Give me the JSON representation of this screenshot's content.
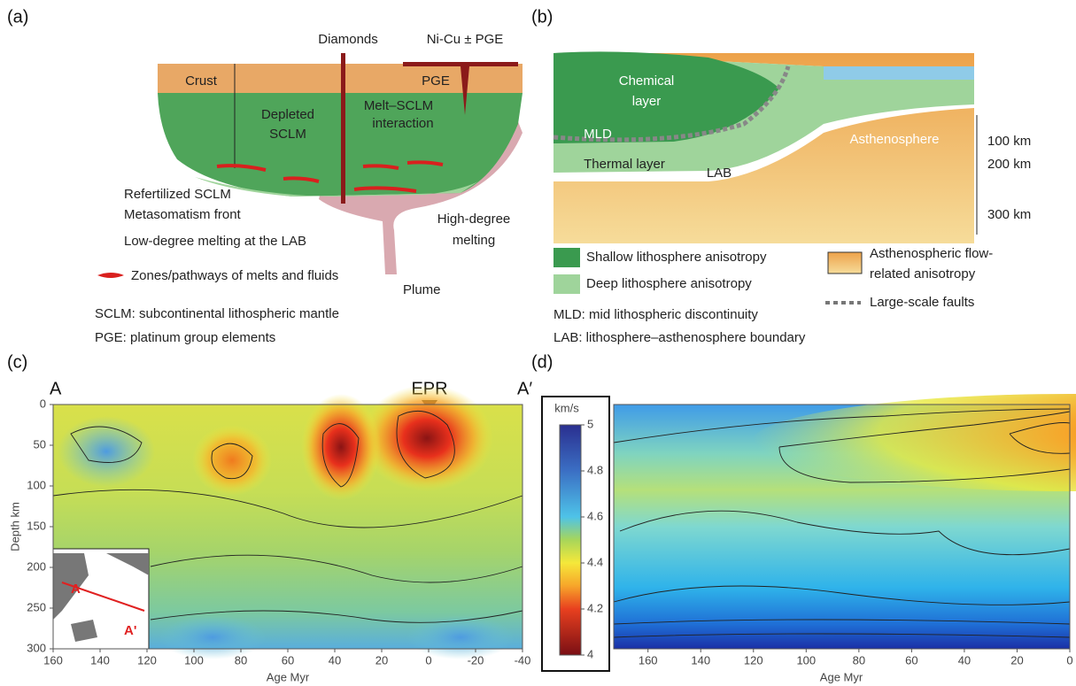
{
  "panel_a": {
    "label": "(a)",
    "diamonds": "Diamonds",
    "ni_cu": "Ni-Cu ± PGE",
    "crust": "Crust",
    "pge": "PGE",
    "depleted": [
      "Depleted",
      "SCLM"
    ],
    "melt_sclm": [
      "Melt–SCLM",
      "interaction"
    ],
    "refertilized": "Refertilized SCLM",
    "metasomatism": "Metasomatism front",
    "low_degree": "Low-degree melting at the LAB",
    "high_degree": [
      "High-degree",
      "melting"
    ],
    "zones": "Zones/pathways of melts and fluids",
    "plume": "Plume",
    "notes": [
      "SCLM: subcontinental lithospheric mantle",
      "PGE: platinum group elements"
    ]
  },
  "panel_b": {
    "label": "(b)",
    "chemical": [
      "Chemical",
      "layer"
    ],
    "mld": "MLD",
    "asthenosphere": "Asthenosphere",
    "thermal": "Thermal layer",
    "lab": "LAB",
    "depths": [
      "100 km",
      "200 km",
      "300 km"
    ],
    "legend": [
      "Shallow lithosphere anisotropy",
      "Deep lithosphere anisotropy",
      "Asthenospheric flow-",
      "related anisotropy",
      "Large-scale faults"
    ],
    "notes": [
      "MLD: mid lithospheric discontinuity",
      "LAB: lithosphere–asthenosphere boundary"
    ]
  },
  "panel_c": {
    "label": "(c)",
    "start": "A",
    "ridge": "EPR",
    "end": "A′",
    "ylabel": "Depth km",
    "xlabel": "Age Myr",
    "xlim": [
      160,
      -40
    ],
    "xticks": [
      160,
      140,
      120,
      100,
      80,
      60,
      40,
      20,
      0,
      -20,
      -40
    ],
    "ylim": [
      0,
      300
    ],
    "yticks": [
      0,
      50,
      100,
      150,
      200,
      250,
      300
    ],
    "inset": {
      "start": "A",
      "end": "A'"
    }
  },
  "colorbar": {
    "title": "km/s",
    "range": [
      4,
      5
    ],
    "ticks": [
      5,
      4.8,
      4.6,
      4.4,
      4.2,
      4
    ]
  },
  "panel_d": {
    "label": "(d)",
    "xlabel": "Age Myr",
    "xlim": [
      173,
      0
    ],
    "xticks": [
      160,
      140,
      120,
      100,
      80,
      60,
      40,
      20,
      0
    ]
  }
}
